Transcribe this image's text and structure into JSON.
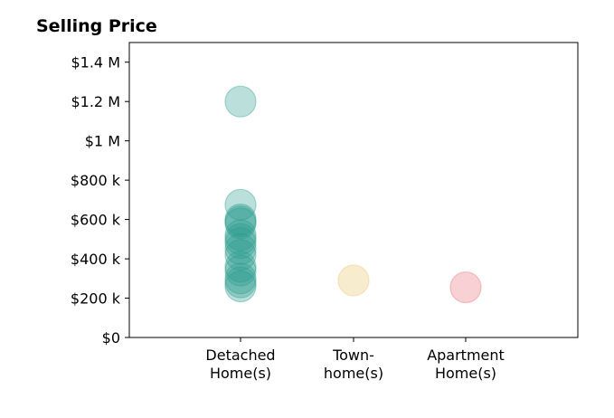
{
  "chart_data": {
    "type": "scatter",
    "title": "Selling Price",
    "xlabel": "",
    "ylabel": "",
    "categories": [
      [
        "Detached",
        "Home(s)"
      ],
      [
        "Town-",
        "home(s)"
      ],
      [
        "Apartment",
        "Home(s)"
      ]
    ],
    "ylim": [
      0,
      1500000
    ],
    "yticks": [
      0,
      200000,
      400000,
      600000,
      800000,
      1000000,
      1200000,
      1400000
    ],
    "ytick_labels": [
      "$0",
      "$200 k",
      "$400 k",
      "$600 k",
      "$800 k",
      "$1 M",
      "$1.2 M",
      "$1.4 M"
    ],
    "grid": false,
    "series": [
      {
        "category_index": 0,
        "color": "#2a9d8f",
        "values": [
          1200000,
          675000,
          600000,
          590000,
          580000,
          520000,
          500000,
          480000,
          450000,
          420000,
          360000,
          340000,
          300000,
          280000,
          260000
        ]
      },
      {
        "category_index": 1,
        "color": "#e9c46a",
        "values": [
          290000
        ]
      },
      {
        "category_index": 2,
        "color": "#e76f7a",
        "values": [
          255000
        ]
      }
    ]
  }
}
